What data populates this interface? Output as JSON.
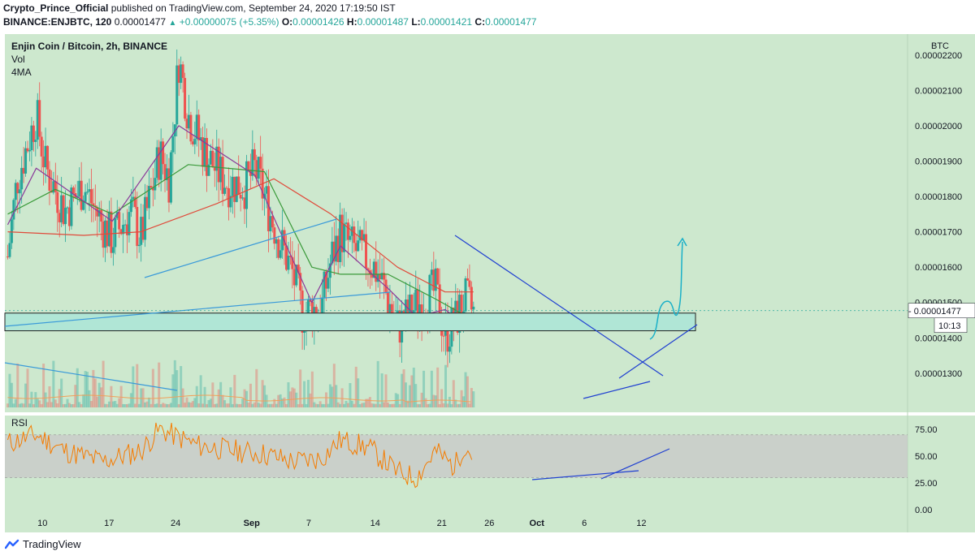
{
  "header": {
    "author": "Crypto_Prince_Official",
    "published": "published on TradingView.com, September 24, 2020 17:19:50 IST",
    "symbol": "BINANCE:ENJBTC, 120",
    "last": "0.00001477",
    "change": "+0.00000075 (+5.35%)",
    "o_label": "O:",
    "o": "0.00001426",
    "h_label": "H:",
    "h": "0.00001487",
    "l_label": "L:",
    "l": "0.00001421",
    "c_label": "C:",
    "c": "0.00001477"
  },
  "legend": {
    "title": "Enjin Coin / Bitcoin, 2h, BINANCE",
    "vol": "Vol",
    "ma": "4MA",
    "currency": "BTC"
  },
  "price_label": {
    "value": "0.00001477",
    "countdown": "10:13"
  },
  "rsi_label": "RSI",
  "footer": {
    "brand": "TradingView"
  },
  "colors": {
    "background": "#cde8ce",
    "bull": "#26a69a",
    "bear": "#ef5350",
    "ma_slow": "#e04a3a",
    "ma_mid": "#3a9a3a",
    "ma_fast": "#8a3a9a",
    "rsi": "#f57c00",
    "trend_blue": "#1f3fd1",
    "trend_light": "#3a9ad9",
    "zone": "#b0e6d6",
    "arrow": "#1ab0c8"
  },
  "chart_data": {
    "type": "candlestick",
    "y_axis_ticks": [
      "0.00002200",
      "0.00002100",
      "0.00002000",
      "0.00001900",
      "0.00001800",
      "0.00001700",
      "0.00001600",
      "0.00001500",
      "0.00001400",
      "0.00001300"
    ],
    "ylim": [
      1.24e-05,
      2.25e-05
    ],
    "x_axis_ticks": [
      "10",
      "17",
      "24",
      "Sep",
      "7",
      "14",
      "21",
      "26",
      "Oct",
      "6",
      "12"
    ],
    "series_points": [
      [
        "Aug 06",
        1.63e-05
      ],
      [
        "Aug 07",
        1.85e-05
      ],
      [
        "Aug 09",
        2.03e-05
      ],
      [
        "Aug 10",
        1.88e-05
      ],
      [
        "Aug 12",
        1.76e-05
      ],
      [
        "Aug 14",
        1.83e-05
      ],
      [
        "Aug 16",
        1.72e-05
      ],
      [
        "Aug 17",
        1.68e-05
      ],
      [
        "Aug 19",
        1.76e-05
      ],
      [
        "Aug 20",
        1.68e-05
      ],
      [
        "Aug 22",
        1.92e-05
      ],
      [
        "Aug 23",
        1.85e-05
      ],
      [
        "Aug 24",
        2.19e-05
      ],
      [
        "Aug 25",
        2.03e-05
      ],
      [
        "Aug 27",
        1.91e-05
      ],
      [
        "Aug 29",
        1.84e-05
      ],
      [
        "Aug 31",
        1.83e-05
      ],
      [
        "Sep 01",
        1.88e-05
      ],
      [
        "Sep 02",
        1.8e-05
      ],
      [
        "Sep 03",
        1.72e-05
      ],
      [
        "Sep 04",
        1.65e-05
      ],
      [
        "Sep 05",
        1.58e-05
      ],
      [
        "Sep 06",
        1.47e-05
      ],
      [
        "Sep 07",
        1.48e-05
      ],
      [
        "Sep 08",
        1.48e-05
      ],
      [
        "Sep 09",
        1.62e-05
      ],
      [
        "Sep 10",
        1.7e-05
      ],
      [
        "Sep 11",
        1.66e-05
      ],
      [
        "Sep 12",
        1.64e-05
      ],
      [
        "Sep 13",
        1.62e-05
      ],
      [
        "Sep 14",
        1.58e-05
      ],
      [
        "Sep 15",
        1.51e-05
      ],
      [
        "Sep 16",
        1.43e-05
      ],
      [
        "Sep 17",
        1.46e-05
      ],
      [
        "Sep 18",
        1.49e-05
      ],
      [
        "Sep 19",
        1.52e-05
      ],
      [
        "Sep 20",
        1.53e-05
      ],
      [
        "Sep 21",
        1.41e-05
      ],
      [
        "Sep 22",
        1.44e-05
      ],
      [
        "Sep 23",
        1.51e-05
      ],
      [
        "Sep 24",
        1.47e-05
      ]
    ],
    "moving_averages": [
      {
        "points": [
          [
            "Aug 06",
            1.7e-05
          ],
          [
            "Aug 14",
            1.69e-05
          ],
          [
            "Aug 20",
            1.7e-05
          ],
          [
            "Aug 28",
            1.78e-05
          ],
          [
            "Sep 03",
            1.85e-05
          ],
          [
            "Sep 09",
            1.75e-05
          ],
          [
            "Sep 16",
            1.6e-05
          ],
          [
            "Sep 21",
            1.53e-05
          ],
          [
            "Sep 24",
            1.53e-05
          ]
        ]
      },
      {
        "points": [
          [
            "Aug 06",
            1.75e-05
          ],
          [
            "Aug 11",
            1.82e-05
          ],
          [
            "Aug 17",
            1.75e-05
          ],
          [
            "Aug 25",
            1.89e-05
          ],
          [
            "Sep 02",
            1.87e-05
          ],
          [
            "Sep 07",
            1.6e-05
          ],
          [
            "Sep 10",
            1.58e-05
          ],
          [
            "Sep 15",
            1.58e-05
          ],
          [
            "Sep 20",
            1.51e-05
          ],
          [
            "Sep 24",
            1.45e-05
          ]
        ]
      },
      {
        "points": [
          [
            "Aug 06",
            1.72e-05
          ],
          [
            "Aug 09",
            1.88e-05
          ],
          [
            "Aug 17",
            1.73e-05
          ],
          [
            "Aug 24",
            2e-05
          ],
          [
            "Sep 01",
            1.86e-05
          ],
          [
            "Sep 07",
            1.5e-05
          ],
          [
            "Sep 10",
            1.66e-05
          ],
          [
            "Sep 15",
            1.54e-05
          ],
          [
            "Sep 18",
            1.46e-05
          ],
          [
            "Sep 21",
            1.48e-05
          ],
          [
            "Sep 24",
            1.42e-05
          ]
        ]
      }
    ],
    "support_zone": [
      1.42e-05,
      1.47e-05
    ],
    "rsi": {
      "ticks": [
        "75.00",
        "50.00",
        "25.00",
        "0.00"
      ],
      "ylim": [
        0,
        85
      ],
      "band": [
        30,
        70
      ],
      "points": [
        [
          "Aug 06",
          62
        ],
        [
          "Aug 09",
          70
        ],
        [
          "Aug 12",
          55
        ],
        [
          "Aug 16",
          45
        ],
        [
          "Aug 20",
          55
        ],
        [
          "Aug 22",
          75
        ],
        [
          "Aug 26",
          60
        ],
        [
          "Aug 30",
          55
        ],
        [
          "Sep 02",
          52
        ],
        [
          "Sep 05",
          45
        ],
        [
          "Sep 08",
          48
        ],
        [
          "Sep 10",
          65
        ],
        [
          "Sep 13",
          58
        ],
        [
          "Sep 16",
          35
        ],
        [
          "Sep 18",
          30
        ],
        [
          "Sep 20",
          55
        ],
        [
          "Sep 22",
          40
        ],
        [
          "Sep 23",
          60
        ],
        [
          "Sep 24",
          50
        ]
      ]
    }
  }
}
